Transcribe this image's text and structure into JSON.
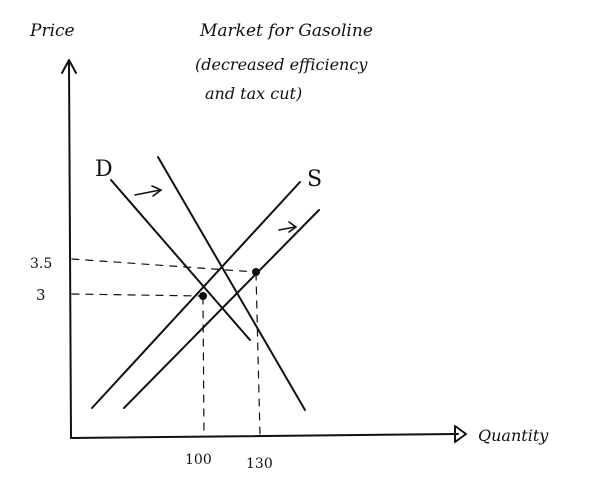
{
  "diagram": {
    "title_line1": "Market for Gasoline",
    "title_line2": "(decreased efficiency",
    "title_line3": "and tax cut)",
    "y_axis_label": "Price",
    "x_axis_label": "Quantity",
    "demand_label": "D",
    "supply_label": "S",
    "price_ticks": [
      "3.5",
      "3"
    ],
    "quantity_ticks": [
      "100",
      "130"
    ]
  },
  "colors": {
    "ink": "#111111",
    "background": "#ffffff"
  }
}
